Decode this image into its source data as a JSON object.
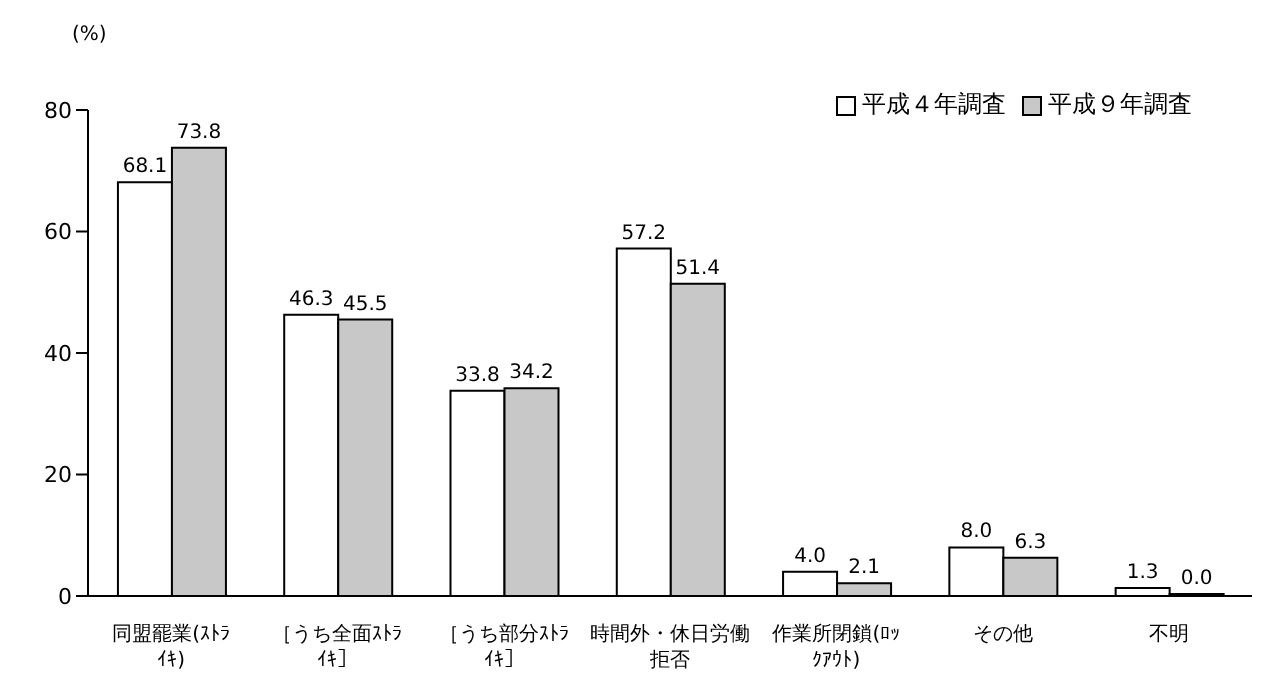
{
  "chart_data": {
    "type": "bar",
    "ylabel": "(%)",
    "categories": [
      "同盟罷業(ｽﾄﾗｲｷ)",
      "［うち全面ｽﾄﾗｲｷ］",
      "［うち部分ｽﾄﾗｲｷ］",
      "時間外・休日労働拒否",
      "作業所閉鎖(ﾛｯｸｱｳﾄ)",
      "その他",
      "不明"
    ],
    "series": [
      {
        "name": "平成４年調査",
        "color": "#ffffff",
        "values": [
          68.1,
          46.3,
          33.8,
          57.2,
          4.0,
          8.0,
          1.3
        ],
        "value_labels": [
          "68.1",
          "46.3",
          "33.8",
          "57.2",
          "4.0",
          "8.0",
          "1.3"
        ]
      },
      {
        "name": "平成９年調査",
        "color": "#c8c8c8",
        "values": [
          73.8,
          45.5,
          34.2,
          51.4,
          2.1,
          6.3,
          0.0
        ],
        "value_labels": [
          "73.8",
          "45.5",
          "34.2",
          "51.4",
          "2.1",
          "6.3",
          "0.0"
        ]
      }
    ],
    "ylim": [
      0,
      80
    ],
    "yticks": [
      0,
      20,
      40,
      60,
      80
    ],
    "grid": false,
    "legend": "top right"
  }
}
